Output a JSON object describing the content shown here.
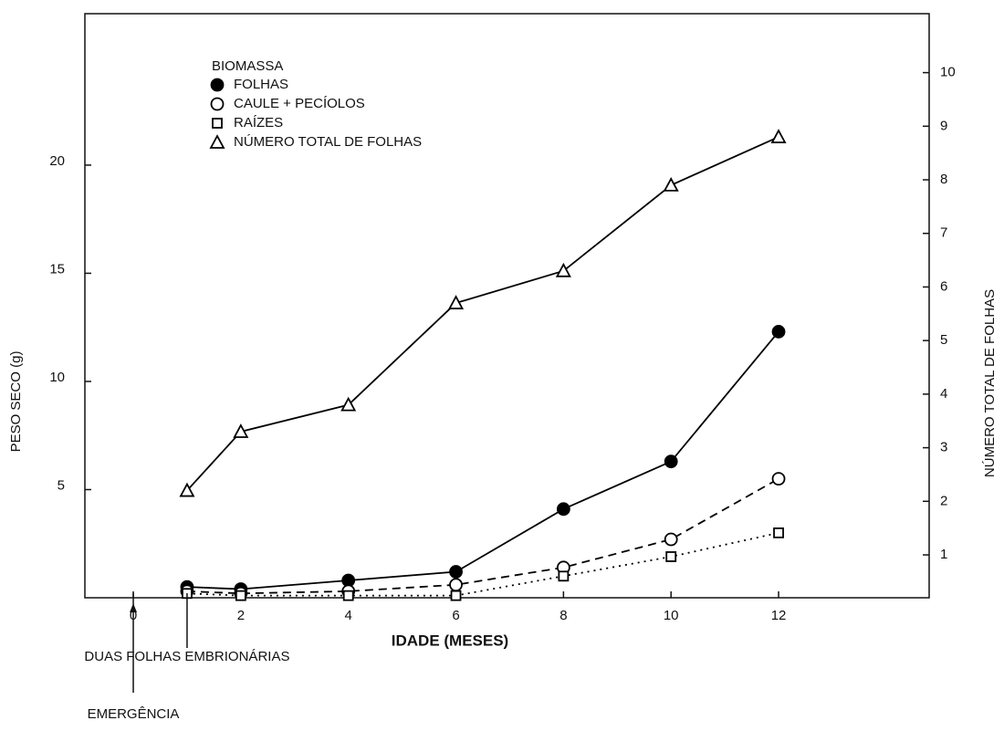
{
  "chart_data": {
    "type": "line",
    "xlabel": "IDADE (MESES)",
    "ylabel": "PESO SECO (g)",
    "y2label": "NÚMERO TOTAL DE FOLHAS",
    "legend_title": "BIOMASSA",
    "x": [
      1,
      2,
      4,
      6,
      8,
      10,
      12
    ],
    "xlim": [
      -0.9,
      14.8
    ],
    "xticks": [
      0,
      2,
      4,
      6,
      8,
      10,
      12
    ],
    "ylim": [
      0,
      27
    ],
    "yticks": [
      5,
      10,
      15,
      20
    ],
    "y2lim": [
      0.2,
      11.1
    ],
    "y2ticks": [
      1,
      2,
      3,
      4,
      5,
      6,
      7,
      8,
      9,
      10
    ],
    "series": [
      {
        "name": "FOLHAS",
        "color": "#000000",
        "marker": "filled-circle",
        "dash": "solid",
        "values": [
          0.5,
          0.4,
          0.8,
          1.2,
          4.1,
          6.3,
          12.3
        ]
      },
      {
        "name": "CAULE + PECÍOLOS",
        "color": "#000000",
        "marker": "open-circle",
        "dash": "dashed",
        "values": [
          0.3,
          0.2,
          0.3,
          0.6,
          1.4,
          2.7,
          5.5
        ]
      },
      {
        "name": "RAÍZES",
        "color": "#000000",
        "marker": "open-square",
        "dash": "dotted",
        "values": [
          0.2,
          0.1,
          0.1,
          0.1,
          1.0,
          1.9,
          3.0
        ]
      },
      {
        "name": "NÚMERO TOTAL DE FOLHAS",
        "color": "#000000",
        "marker": "open-triangle",
        "dash": "solid",
        "axis": "y2",
        "values": [
          2.2,
          3.3,
          3.8,
          5.7,
          6.3,
          7.9,
          8.8
        ]
      }
    ],
    "annotations": [
      {
        "text": "DUAS FOLHAS EMBRIONÁRIAS",
        "x": 1
      },
      {
        "text": "EMERGÊNCIA",
        "x": 0
      }
    ]
  }
}
